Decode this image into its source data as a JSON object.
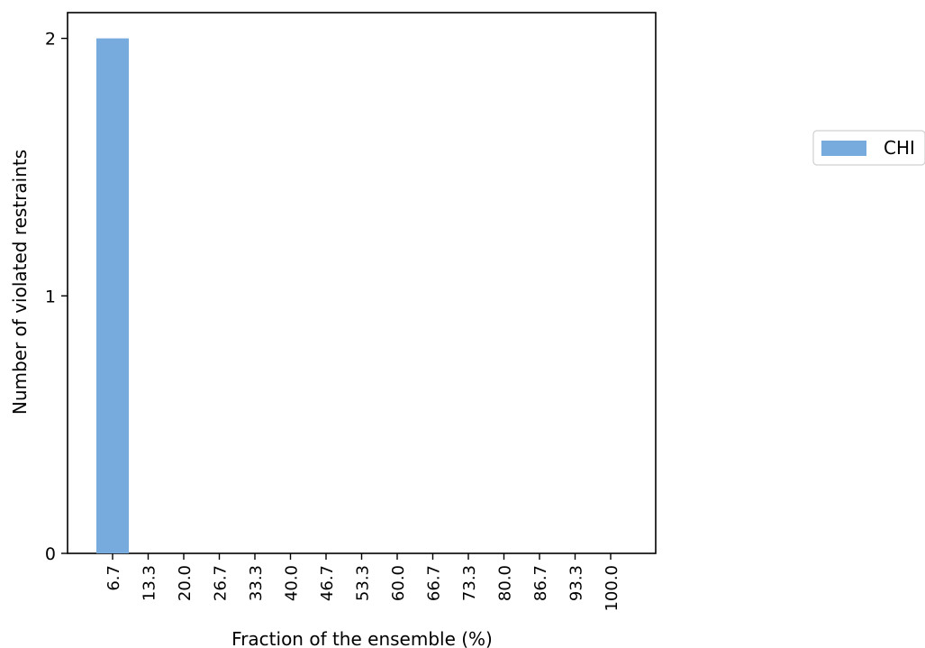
{
  "chart_data": {
    "type": "bar",
    "categories": [
      "6.7",
      "13.3",
      "20.0",
      "26.7",
      "33.3",
      "40.0",
      "46.7",
      "53.3",
      "60.0",
      "66.7",
      "73.3",
      "80.0",
      "86.7",
      "93.3",
      "100.0"
    ],
    "series": [
      {
        "name": "CHI",
        "values": [
          2,
          0,
          0,
          0,
          0,
          0,
          0,
          0,
          0,
          0,
          0,
          0,
          0,
          0,
          0
        ],
        "color": "#77aadd"
      }
    ],
    "title": "",
    "xlabel": "Fraction of the ensemble (%)",
    "ylabel": "Number of violated restraints",
    "ylim": [
      0,
      2.1
    ],
    "yticks": [
      0,
      1,
      2
    ],
    "grid": false,
    "legend_position": "right"
  }
}
